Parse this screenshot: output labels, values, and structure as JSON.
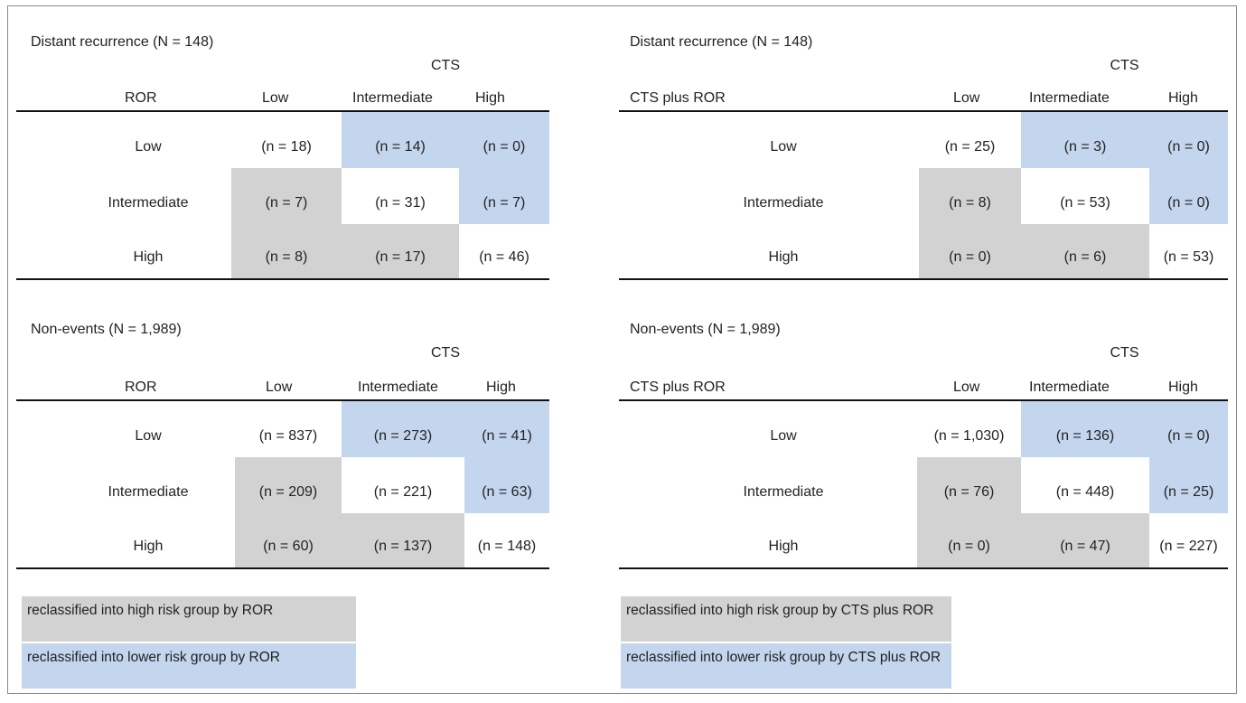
{
  "colors": {
    "gray": "#d2d2d2",
    "blue": "#c4d5ee",
    "rule": "#111111",
    "border": "#8a8a8a"
  },
  "panels": [
    {
      "title": "Distant recurrence (N = 148)",
      "col_group": "CTS",
      "row_header": "ROR",
      "col_headers": [
        "Low",
        "Intermediate",
        "High"
      ],
      "rows": [
        {
          "label": "Low",
          "cells": [
            "(n = 18)",
            "(n = 14)",
            "(n = 0)"
          ]
        },
        {
          "label": "Intermediate",
          "cells": [
            "(n = 7)",
            "(n = 31)",
            "(n = 7)"
          ]
        },
        {
          "label": "High",
          "cells": [
            "(n = 8)",
            "(n = 17)",
            "(n = 46)"
          ]
        }
      ]
    },
    {
      "title": "Distant recurrence (N = 148)",
      "col_group": "CTS",
      "row_header": "CTS plus ROR",
      "col_headers": [
        "Low",
        "Intermediate",
        "High"
      ],
      "rows": [
        {
          "label": "Low",
          "cells": [
            "(n = 25)",
            "(n = 3)",
            "(n = 0)"
          ]
        },
        {
          "label": "Intermediate",
          "cells": [
            "(n = 8)",
            "(n = 53)",
            "(n = 0)"
          ]
        },
        {
          "label": "High",
          "cells": [
            "(n = 0)",
            "(n = 6)",
            "(n = 53)"
          ]
        }
      ]
    },
    {
      "title": "Non-events (N = 1,989)",
      "col_group": "CTS",
      "row_header": "ROR",
      "col_headers": [
        "Low",
        "Intermediate",
        "High"
      ],
      "rows": [
        {
          "label": "Low",
          "cells": [
            "(n = 837)",
            "(n = 273)",
            "(n = 41)"
          ]
        },
        {
          "label": "Intermediate",
          "cells": [
            "(n = 209)",
            "(n = 221)",
            "(n = 63)"
          ]
        },
        {
          "label": "High",
          "cells": [
            "(n = 60)",
            "(n = 137)",
            "(n = 148)"
          ]
        }
      ]
    },
    {
      "title": "Non-events (N = 1,989)",
      "col_group": "CTS",
      "row_header": "CTS plus ROR",
      "col_headers": [
        "Low",
        "Intermediate",
        "High"
      ],
      "rows": [
        {
          "label": "Low",
          "cells": [
            "(n = 1,030)",
            "(n = 136)",
            "(n = 0)"
          ]
        },
        {
          "label": "Intermediate",
          "cells": [
            "(n = 76)",
            "(n = 448)",
            "(n = 25)"
          ]
        },
        {
          "label": "High",
          "cells": [
            "(n = 0)",
            "(n = 47)",
            "(n = 227)"
          ]
        }
      ]
    }
  ],
  "legends": [
    {
      "high": "reclassified into high risk group by ROR",
      "lower": "reclassified into lower risk group by ROR"
    },
    {
      "high": "reclassified into high risk group by CTS plus ROR",
      "lower": "reclassified into lower risk group by CTS plus ROR"
    }
  ]
}
